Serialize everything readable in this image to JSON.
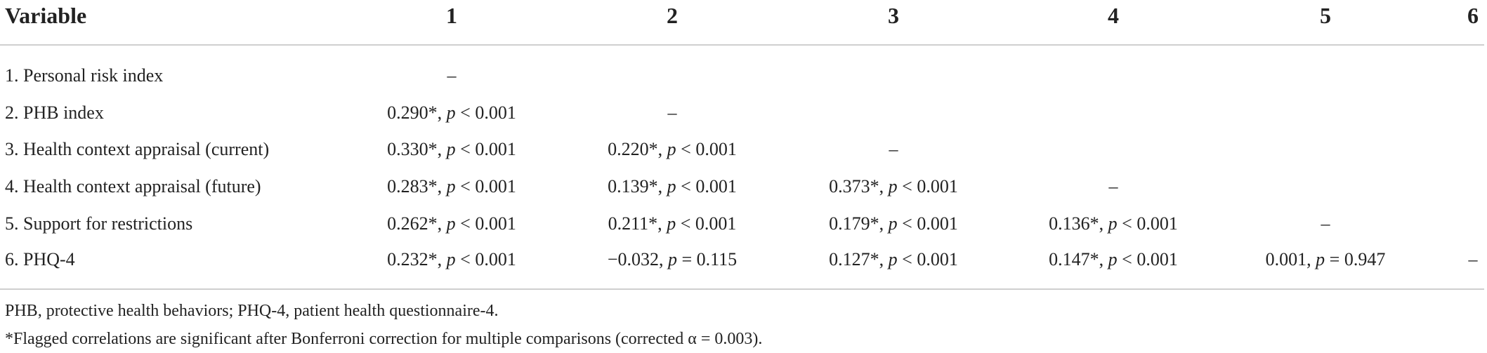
{
  "table": {
    "headers": [
      "Variable",
      "1",
      "2",
      "3",
      "4",
      "5",
      "6"
    ],
    "rows": [
      {
        "label": "1. Personal risk index",
        "cells": [
          "–"
        ]
      },
      {
        "label": "2. PHB index",
        "cells": [
          "0.290*, p < 0.001",
          "–"
        ]
      },
      {
        "label": "3. Health context appraisal (current)",
        "cells": [
          "0.330*, p < 0.001",
          "0.220*, p < 0.001",
          "–"
        ]
      },
      {
        "label": "4. Health context appraisal (future)",
        "cells": [
          "0.283*, p < 0.001",
          "0.139*, p < 0.001",
          "0.373*, p < 0.001",
          "–"
        ]
      },
      {
        "label": "5. Support for restrictions",
        "cells": [
          "0.262*, p < 0.001",
          "0.211*, p < 0.001",
          "0.179*, p < 0.001",
          "0.136*, p < 0.001",
          "–"
        ]
      },
      {
        "label": "6. PHQ-4",
        "cells": [
          "0.232*, p < 0.001",
          "−0.032, p = 0.115",
          "0.127*, p < 0.001",
          "0.147*, p < 0.001",
          "0.001, p = 0.947",
          "–"
        ]
      }
    ],
    "footnotes": [
      "PHB, protective health behaviors; PHQ-4, patient health questionnaire-4.",
      "*Flagged correlations are significant after Bonferroni correction for multiple comparisons (corrected α  = 0.003)."
    ]
  }
}
